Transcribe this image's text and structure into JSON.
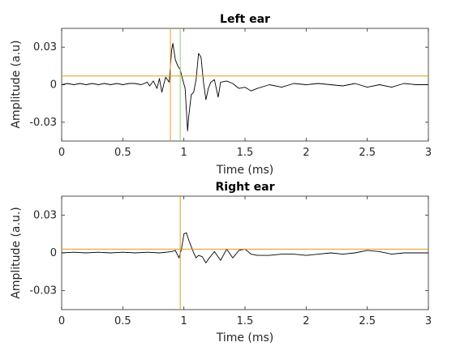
{
  "chart_data": [
    {
      "type": "line",
      "title": "Left ear",
      "xlabel": "Time (ms)",
      "ylabel": "Amplitude (a.u)",
      "xlim": [
        0,
        3
      ],
      "ylim": [
        -0.045,
        0.045
      ],
      "xticks": [
        0,
        0.5,
        1,
        1.5,
        2,
        2.5,
        3
      ],
      "xtick_labels": [
        "0",
        "0.5",
        "1",
        "1.5",
        "2",
        "2.5",
        "3"
      ],
      "yticks": [
        0.03,
        0,
        -0.03
      ],
      "ytick_labels": [
        "0.03",
        "0",
        "-0.03"
      ],
      "grid": false,
      "series": [
        {
          "color": "#000000",
          "x": [
            0,
            0.05,
            0.1,
            0.15,
            0.2,
            0.25,
            0.3,
            0.35,
            0.4,
            0.45,
            0.5,
            0.55,
            0.6,
            0.65,
            0.7,
            0.72,
            0.75,
            0.78,
            0.8,
            0.82,
            0.85,
            0.88,
            0.9,
            0.91,
            0.93,
            0.95,
            0.97,
            0.99,
            1.01,
            1.03,
            1.04,
            1.06,
            1.08,
            1.1,
            1.12,
            1.14,
            1.16,
            1.18,
            1.2,
            1.22,
            1.25,
            1.28,
            1.3,
            1.35,
            1.4,
            1.45,
            1.5,
            1.55,
            1.6,
            1.7,
            1.8,
            1.9,
            2.0,
            2.1,
            2.2,
            2.3,
            2.4,
            2.5,
            2.6,
            2.7,
            2.8,
            2.9,
            3.0
          ],
          "y": [
            0,
            0.001,
            0,
            0.001,
            0,
            0.001,
            0,
            0.001,
            0,
            0.001,
            0,
            0.001,
            0.001,
            0,
            0.002,
            -0.001,
            0.003,
            -0.003,
            0.005,
            -0.006,
            0.006,
            0.002,
            0.028,
            0.033,
            0.02,
            0.015,
            0.012,
            0.004,
            -0.003,
            -0.037,
            -0.025,
            -0.008,
            -0.006,
            0.004,
            0.025,
            0.022,
            0.002,
            -0.012,
            -0.003,
            0.002,
            0.004,
            -0.01,
            0.002,
            0.003,
            0.001,
            -0.003,
            -0.002,
            -0.005,
            -0.003,
            0.0,
            -0.002,
            0.001,
            0.0,
            0.001,
            0.0,
            -0.001,
            0.001,
            -0.002,
            0.0,
            -0.002,
            0.001,
            0.0,
            0.0
          ]
        },
        {
          "type": "hline",
          "color": "#E8971C",
          "y": 0.007
        },
        {
          "type": "vline",
          "color": "#E8971C",
          "x": 0.89
        },
        {
          "type": "vline",
          "color": "#8BD46B",
          "x": 0.97
        }
      ]
    },
    {
      "type": "line",
      "title": "Right ear",
      "xlabel": "Time (ms)",
      "ylabel": "Amplitude (a.u.)",
      "xlim": [
        0,
        3
      ],
      "ylim": [
        -0.045,
        0.045
      ],
      "xticks": [
        0,
        0.5,
        1,
        1.5,
        2,
        2.5,
        3
      ],
      "xtick_labels": [
        "0",
        "0.5",
        "1",
        "1.5",
        "2",
        "2.5",
        "3"
      ],
      "yticks": [
        0.03,
        0,
        -0.03
      ],
      "ytick_labels": [
        "0.03",
        "0",
        "-0.03"
      ],
      "grid": false,
      "series": [
        {
          "color": "#000000",
          "x": [
            0,
            0.1,
            0.2,
            0.3,
            0.4,
            0.5,
            0.6,
            0.7,
            0.8,
            0.9,
            0.93,
            0.96,
            0.98,
            1.0,
            1.02,
            1.04,
            1.06,
            1.08,
            1.1,
            1.12,
            1.15,
            1.18,
            1.2,
            1.25,
            1.3,
            1.35,
            1.4,
            1.45,
            1.5,
            1.55,
            1.6,
            1.7,
            1.8,
            1.9,
            2.0,
            2.1,
            2.2,
            2.3,
            2.4,
            2.5,
            2.6,
            2.7,
            2.8,
            2.9,
            3.0
          ],
          "y": [
            0,
            0.0005,
            0,
            0.0005,
            0,
            0.0005,
            0,
            0.0005,
            0,
            0.001,
            0.002,
            -0.004,
            0.003,
            0.015,
            0.016,
            0.01,
            0.005,
            0.0,
            -0.004,
            -0.002,
            -0.003,
            -0.008,
            -0.005,
            0.001,
            -0.006,
            0.003,
            -0.004,
            0.002,
            0.003,
            -0.001,
            -0.002,
            -0.002,
            -0.001,
            -0.001,
            -0.002,
            -0.001,
            0.0,
            -0.001,
            0.0,
            0.002,
            0.001,
            -0.001,
            0.0,
            0.0,
            0.0
          ]
        },
        {
          "type": "hline",
          "color": "#E8971C",
          "y": 0.003
        },
        {
          "type": "vline",
          "color": "#E8971C",
          "x": 0.97
        }
      ]
    }
  ]
}
